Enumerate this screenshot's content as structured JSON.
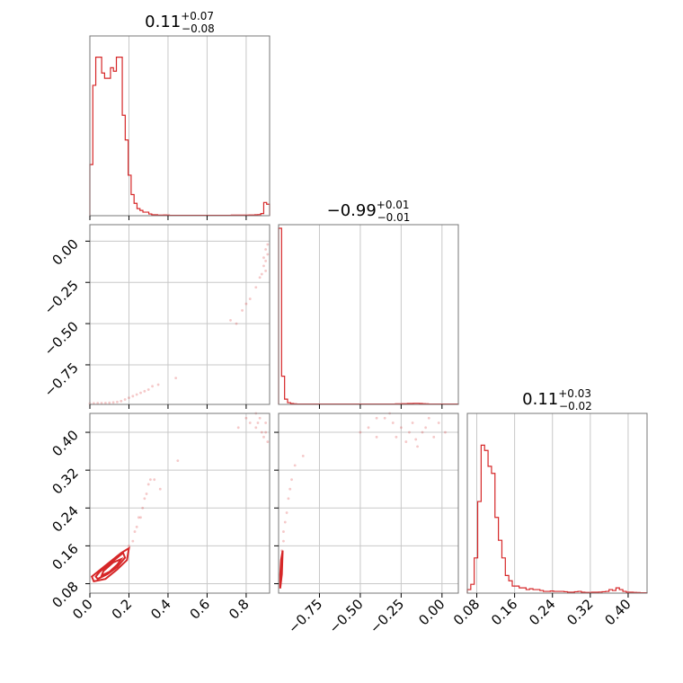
{
  "chart_data": {
    "type": "corner",
    "color": "#d62728",
    "grid": true,
    "panels": [
      {
        "type": "histogram",
        "title": {
          "value": "0.11",
          "plus": "+0.07",
          "minus": "−0.08"
        },
        "xlim": [
          0.0,
          0.92
        ],
        "bin_edges_start": 0.0,
        "bin_width": 0.0153,
        "counts": [
          0.29,
          0.74,
          0.9,
          0.9,
          0.81,
          0.78,
          0.78,
          0.84,
          0.82,
          0.9,
          0.9,
          0.57,
          0.43,
          0.23,
          0.12,
          0.07,
          0.04,
          0.03,
          0.02,
          0.02,
          0.01,
          0.005,
          0.005,
          0.003,
          0.003,
          0.004,
          0.003,
          0.002,
          0.002,
          0.002,
          0.002,
          0.002,
          0.002,
          0.002,
          0.002,
          0.002,
          0.002,
          0.002,
          0.002,
          0.002,
          0.002,
          0.002,
          0.002,
          0.002,
          0.002,
          0.002,
          0.002,
          0.002,
          0.003,
          0.003,
          0.003,
          0.003,
          0.003,
          0.003,
          0.004,
          0.004,
          0.005,
          0.006,
          0.012,
          0.075,
          0.065
        ],
        "xticks": [],
        "yticks": []
      },
      {
        "type": "histogram",
        "title": {
          "value": "−0.99",
          "plus": "+0.01",
          "minus": "−0.01"
        },
        "xlim": [
          -1.0,
          0.1
        ],
        "counts": [
          1.0,
          0.16,
          0.03,
          0.01,
          0.005,
          0.003,
          0.002,
          0.002,
          0.002,
          0.002,
          0.002,
          0.002,
          0.002,
          0.002,
          0.002,
          0.002,
          0.002,
          0.002,
          0.002,
          0.002,
          0.002,
          0.002,
          0.002,
          0.002,
          0.002,
          0.002,
          0.002,
          0.002,
          0.002,
          0.002,
          0.002,
          0.002,
          0.002,
          0.002,
          0.002,
          0.002,
          0.002,
          0.002,
          0.002,
          0.003,
          0.003,
          0.004,
          0.004,
          0.005,
          0.005,
          0.006,
          0.006,
          0.005,
          0.004,
          0.003,
          0.002,
          0.002,
          0.002,
          0.002,
          0.002,
          0.002,
          0.002,
          0.002,
          0.002,
          0.002
        ],
        "xticks": []
      },
      {
        "type": "histogram",
        "title": {
          "value": "0.11",
          "plus": "+0.03",
          "minus": "−0.02"
        },
        "xlim": [
          0.06,
          0.44
        ],
        "counts": [
          0.02,
          0.05,
          0.2,
          0.52,
          0.84,
          0.81,
          0.72,
          0.68,
          0.43,
          0.3,
          0.2,
          0.1,
          0.07,
          0.04,
          0.04,
          0.03,
          0.03,
          0.02,
          0.025,
          0.02,
          0.02,
          0.015,
          0.01,
          0.01,
          0.012,
          0.01,
          0.01,
          0.01,
          0.008,
          0.005,
          0.005,
          0.008,
          0.01,
          0.005,
          0.004,
          0.004,
          0.005,
          0.005,
          0.006,
          0.008,
          0.01,
          0.02,
          0.015,
          0.03,
          0.02,
          0.01,
          0.005,
          0.005,
          0.004,
          0.003,
          0.002,
          0.002
        ],
        "xticks": [
          "0.08",
          "0.16",
          "0.24",
          "0.32",
          "0.40"
        ],
        "xtick_values": [
          0.08,
          0.16,
          0.24,
          0.32,
          0.4
        ]
      },
      {
        "type": "scatter-2d",
        "xlim": [
          0.0,
          0.92
        ],
        "ylim": [
          -0.99,
          0.1
        ],
        "yticks": [
          "0.00",
          "−0.25",
          "−0.50",
          "−0.75"
        ],
        "ytick_values": [
          0.0,
          -0.25,
          -0.5,
          -0.75
        ],
        "points": [
          [
            0.0,
            -0.985
          ],
          [
            0.02,
            -0.983
          ],
          [
            0.04,
            -0.982
          ],
          [
            0.06,
            -0.982
          ],
          [
            0.08,
            -0.981
          ],
          [
            0.1,
            -0.98
          ],
          [
            0.12,
            -0.978
          ],
          [
            0.14,
            -0.975
          ],
          [
            0.16,
            -0.97
          ],
          [
            0.18,
            -0.96
          ],
          [
            0.2,
            -0.95
          ],
          [
            0.22,
            -0.94
          ],
          [
            0.24,
            -0.93
          ],
          [
            0.26,
            -0.92
          ],
          [
            0.28,
            -0.91
          ],
          [
            0.3,
            -0.9
          ],
          [
            0.32,
            -0.88
          ],
          [
            0.35,
            -0.87
          ],
          [
            0.44,
            -0.83
          ],
          [
            0.72,
            -0.48
          ],
          [
            0.75,
            -0.5
          ],
          [
            0.78,
            -0.42
          ],
          [
            0.8,
            -0.38
          ],
          [
            0.82,
            -0.35
          ],
          [
            0.85,
            -0.28
          ],
          [
            0.87,
            -0.22
          ],
          [
            0.88,
            -0.2
          ],
          [
            0.89,
            -0.15
          ],
          [
            0.9,
            -0.12
          ],
          [
            0.91,
            -0.08
          ],
          [
            0.9,
            -0.05
          ],
          [
            0.91,
            -0.02
          ],
          [
            0.89,
            -0.1
          ],
          [
            0.9,
            -0.18
          ]
        ]
      },
      {
        "type": "scatter-2d",
        "xlim": [
          -1.0,
          0.1
        ],
        "ylim": [
          -0.99,
          0.1
        ],
        "points": []
      },
      {
        "type": "scatter-2d",
        "xlim": [
          0.0,
          0.92
        ],
        "ylim": [
          0.06,
          0.44
        ],
        "xticks": [
          "0.0",
          "0.2",
          "0.4",
          "0.6",
          "0.8"
        ],
        "xtick_values": [
          0.0,
          0.2,
          0.4,
          0.6,
          0.8
        ],
        "yticks": [
          "0.08",
          "0.16",
          "0.24",
          "0.32",
          "0.40"
        ],
        "ytick_values": [
          0.08,
          0.16,
          0.24,
          0.32,
          0.4
        ],
        "points": [
          [
            0.2,
            0.16
          ],
          [
            0.22,
            0.17
          ],
          [
            0.23,
            0.19
          ],
          [
            0.24,
            0.2
          ],
          [
            0.25,
            0.22
          ],
          [
            0.26,
            0.22
          ],
          [
            0.27,
            0.24
          ],
          [
            0.28,
            0.26
          ],
          [
            0.29,
            0.27
          ],
          [
            0.3,
            0.29
          ],
          [
            0.31,
            0.3
          ],
          [
            0.33,
            0.3
          ],
          [
            0.36,
            0.28
          ],
          [
            0.45,
            0.34
          ],
          [
            0.8,
            0.43
          ],
          [
            0.82,
            0.42
          ],
          [
            0.85,
            0.41
          ],
          [
            0.86,
            0.42
          ],
          [
            0.88,
            0.4
          ],
          [
            0.89,
            0.39
          ],
          [
            0.9,
            0.42
          ],
          [
            0.91,
            0.38
          ],
          [
            0.85,
            0.44
          ],
          [
            0.87,
            0.43
          ],
          [
            0.9,
            0.4
          ],
          [
            0.76,
            0.41
          ]
        ],
        "contours": [
          [
            [
              0.02,
              0.085
            ],
            [
              0.08,
              0.09
            ],
            [
              0.14,
              0.11
            ],
            [
              0.19,
              0.13
            ],
            [
              0.2,
              0.155
            ],
            [
              0.16,
              0.145
            ],
            [
              0.1,
              0.125
            ],
            [
              0.04,
              0.105
            ],
            [
              0.01,
              0.095
            ],
            [
              0.02,
              0.085
            ]
          ],
          [
            [
              0.04,
              0.09
            ],
            [
              0.09,
              0.1
            ],
            [
              0.14,
              0.115
            ],
            [
              0.18,
              0.135
            ],
            [
              0.17,
              0.145
            ],
            [
              0.11,
              0.125
            ],
            [
              0.05,
              0.105
            ],
            [
              0.03,
              0.095
            ],
            [
              0.04,
              0.09
            ]
          ],
          [
            [
              0.06,
              0.097
            ],
            [
              0.1,
              0.105
            ],
            [
              0.14,
              0.12
            ],
            [
              0.16,
              0.132
            ],
            [
              0.12,
              0.125
            ],
            [
              0.07,
              0.107
            ],
            [
              0.06,
              0.097
            ]
          ]
        ]
      },
      {
        "type": "scatter-2d",
        "xlim": [
          -1.0,
          0.1
        ],
        "ylim": [
          0.06,
          0.44
        ],
        "xticks": [
          "−0.75",
          "−0.50",
          "−0.25",
          "0.00"
        ],
        "xtick_values": [
          -0.75,
          -0.5,
          -0.25,
          0.0
        ],
        "points": [
          [
            -0.97,
            0.19
          ],
          [
            -0.96,
            0.21
          ],
          [
            -0.95,
            0.23
          ],
          [
            -0.94,
            0.26
          ],
          [
            -0.93,
            0.28
          ],
          [
            -0.92,
            0.3
          ],
          [
            -0.9,
            0.33
          ],
          [
            -0.85,
            0.35
          ],
          [
            -0.97,
            0.17
          ],
          [
            -0.98,
            0.15
          ],
          [
            -0.5,
            0.4
          ],
          [
            -0.45,
            0.41
          ],
          [
            -0.4,
            0.39
          ],
          [
            -0.35,
            0.43
          ],
          [
            -0.3,
            0.42
          ],
          [
            -0.28,
            0.39
          ],
          [
            -0.25,
            0.41
          ],
          [
            -0.22,
            0.38
          ],
          [
            -0.2,
            0.4
          ],
          [
            -0.18,
            0.42
          ],
          [
            -0.15,
            0.37
          ],
          [
            -0.12,
            0.4
          ],
          [
            -0.1,
            0.41
          ],
          [
            -0.08,
            0.43
          ],
          [
            -0.05,
            0.39
          ],
          [
            -0.02,
            0.42
          ],
          [
            0.02,
            0.4
          ],
          [
            -0.32,
            0.44
          ],
          [
            -0.4,
            0.43
          ],
          [
            -0.16,
            0.385
          ]
        ],
        "contours": [
          [
            [
              -0.99,
              0.07
            ],
            [
              -0.98,
              0.1
            ],
            [
              -0.975,
              0.15
            ],
            [
              -0.985,
              0.13
            ],
            [
              -0.99,
              0.1
            ],
            [
              -0.99,
              0.07
            ]
          ],
          [
            [
              -0.985,
              0.09
            ],
            [
              -0.98,
              0.12
            ],
            [
              -0.985,
              0.11
            ],
            [
              -0.985,
              0.09
            ]
          ]
        ]
      }
    ]
  }
}
